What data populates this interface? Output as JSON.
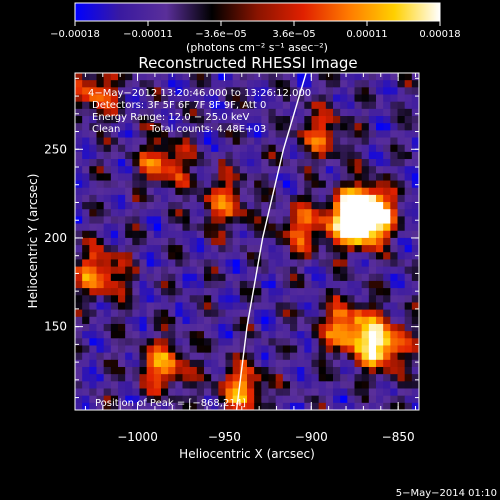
{
  "chart_data": {
    "type": "heatmap",
    "title": "Reconstructed RHESSI Image",
    "xlabel": "Heliocentric X (arcsec)",
    "ylabel": "Heliocentric Y (arcsec)",
    "xlim": [
      -1036,
      -838
    ],
    "ylim": [
      103,
      293
    ],
    "x_ticks": [
      -1000,
      -950,
      -900,
      -850
    ],
    "x_tick_labels": [
      "−1000",
      "−950",
      "−900",
      "−850"
    ],
    "y_ticks": [
      150,
      200,
      250
    ],
    "y_tick_labels": [
      "150",
      "200",
      "250"
    ],
    "colorbar": {
      "range": [
        -0.00018,
        0.00018
      ],
      "tick_labels": [
        "−0.00018",
        "−0.00011",
        "−3.6e−05",
        "3.6e−05",
        "0.00011",
        "0.00018"
      ],
      "unit_label": "(photons cm⁻² s⁻¹ asec⁻²)",
      "colormap_stops": [
        "#0000ff",
        "#3a1aa0",
        "#5a2f9a",
        "#000000",
        "#8a1400",
        "#e02000",
        "#ff7a00",
        "#ffd000",
        "#ffffff"
      ]
    },
    "annotations": {
      "time": "4−May−2012 13:20:46.000 to 13:26:12.000",
      "detectors": "Detectors: 3F 5F 6F 7F 8F 9F, Att 0",
      "energy": "Energy Range: 12.0 − 25.0 keV",
      "method": "Clean",
      "counts": "Total counts: 4.48E+03",
      "peak": "Position of Peak = [−868,214]"
    },
    "limb_curve": [
      [
        -943,
        103
      ],
      [
        -937,
        150
      ],
      [
        -928,
        200
      ],
      [
        -916,
        250
      ],
      [
        -903,
        293
      ]
    ],
    "bright_regions": [
      {
        "x": -868,
        "y": 214,
        "intensity": 1.0
      },
      {
        "x": -875,
        "y": 210,
        "intensity": 0.85
      },
      {
        "x": -860,
        "y": 140,
        "intensity": 0.8
      },
      {
        "x": -880,
        "y": 150,
        "intensity": 0.6
      },
      {
        "x": -985,
        "y": 128,
        "intensity": 0.55
      },
      {
        "x": -1022,
        "y": 180,
        "intensity": 0.55
      },
      {
        "x": -985,
        "y": 242,
        "intensity": 0.5
      },
      {
        "x": -950,
        "y": 220,
        "intensity": 0.45
      },
      {
        "x": -905,
        "y": 205,
        "intensity": 0.45
      },
      {
        "x": -1025,
        "y": 282,
        "intensity": 0.45
      },
      {
        "x": -940,
        "y": 115,
        "intensity": 0.55
      },
      {
        "x": -895,
        "y": 258,
        "intensity": 0.4
      }
    ]
  },
  "footer_date": "5−May−2014 01:10"
}
